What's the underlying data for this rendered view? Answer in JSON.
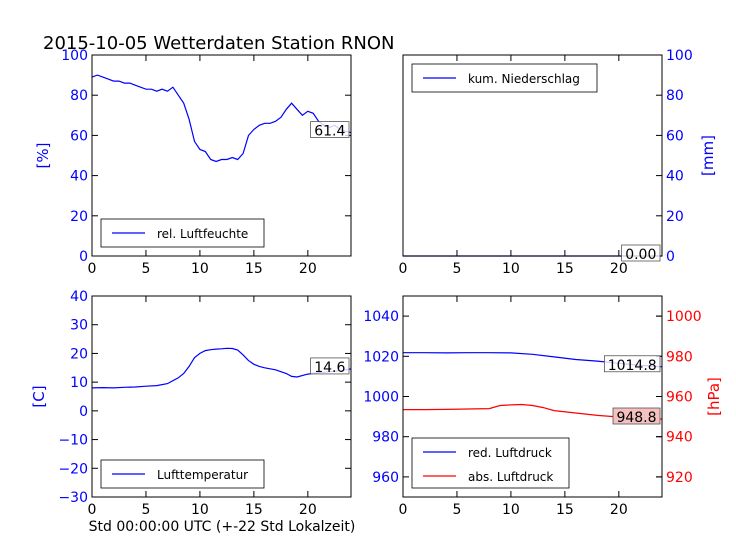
{
  "figure": {
    "title": "2015-10-05 Wetterdaten Station RNON",
    "footer_xlabel": "Std 00:00:00 UTC (+-22 Std Lokalzeit)"
  },
  "colors": {
    "blue": "#0000ff",
    "red": "#ff0000",
    "black": "#000000",
    "pink_box": "#f4c0c0"
  },
  "chart_data": [
    {
      "id": "humidity",
      "type": "line",
      "position": "top-left",
      "title": "",
      "xlabel": "",
      "ylabel": "[%]",
      "xlim": [
        0,
        24
      ],
      "ylim": [
        0,
        100
      ],
      "xticks": [
        "0",
        "5",
        "10",
        "15",
        "20"
      ],
      "yticks": [
        "0",
        "20",
        "40",
        "60",
        "80",
        "100"
      ],
      "ytick_color": "blue",
      "legend_placement": "lower-center",
      "series": [
        {
          "name": "rel. Luftfeuchte",
          "color": "blue",
          "x": [
            0,
            0.5,
            1,
            1.5,
            2,
            2.5,
            3,
            3.5,
            4,
            4.5,
            5,
            5.5,
            6,
            6.5,
            7,
            7.5,
            8,
            8.5,
            9,
            9.5,
            10,
            10.5,
            11,
            11.5,
            12,
            12.5,
            13,
            13.5,
            14,
            14.5,
            15,
            15.5,
            16,
            16.5,
            17,
            17.5,
            18,
            18.5,
            19,
            19.5,
            20,
            20.5,
            21,
            21.5,
            22,
            22.5,
            23,
            23.5,
            24
          ],
          "y": [
            89,
            90,
            89,
            88,
            87,
            87,
            86,
            86,
            85,
            84,
            83,
            83,
            82,
            83,
            82,
            84,
            80,
            76,
            68,
            57,
            53,
            52,
            48,
            47,
            48,
            48,
            49,
            48,
            51,
            60,
            63,
            65,
            66,
            66,
            67,
            69,
            73,
            76,
            73,
            70,
            72,
            71,
            67,
            65,
            64,
            65,
            63,
            62,
            61.4
          ]
        }
      ],
      "annotations": [
        {
          "text": "61.4"
        }
      ]
    },
    {
      "id": "precipitation",
      "type": "line",
      "position": "top-right",
      "title": "",
      "xlabel": "",
      "ylabel": "[mm]",
      "xlim": [
        0,
        24
      ],
      "ylim": [
        0,
        100
      ],
      "xticks": [
        "0",
        "5",
        "10",
        "15",
        "20"
      ],
      "yticks": [
        "0",
        "20",
        "40",
        "60",
        "80",
        "100"
      ],
      "ytick_color": "blue",
      "yaxis_side": "right",
      "legend_placement": "upper-left",
      "series": [
        {
          "name": "kum. Niederschlag",
          "color": "blue",
          "x": [
            0,
            24
          ],
          "y": [
            0,
            0
          ]
        }
      ],
      "annotations": [
        {
          "text": "0.00"
        }
      ]
    },
    {
      "id": "temperature",
      "type": "line",
      "position": "bottom-left",
      "title": "",
      "xlabel": "",
      "ylabel": "[C]",
      "xlim": [
        0,
        24
      ],
      "ylim": [
        -30,
        40
      ],
      "xticks": [
        "0",
        "5",
        "10",
        "15",
        "20"
      ],
      "yticks": [
        "−30",
        "−20",
        "−10",
        "0",
        "10",
        "20",
        "30",
        "40"
      ],
      "ytick_color": "blue",
      "legend_placement": "lower-center",
      "series": [
        {
          "name": "Lufttemperatur",
          "color": "blue",
          "x": [
            0,
            1,
            2,
            3,
            4,
            5,
            6,
            7,
            8,
            8.5,
            9,
            9.5,
            10,
            10.5,
            11,
            11.5,
            12,
            12.5,
            13,
            13.5,
            14,
            14.5,
            15,
            15.5,
            16,
            17,
            18,
            18.5,
            19,
            20,
            21,
            22,
            23,
            24
          ],
          "y": [
            8.0,
            8.1,
            8.0,
            8.2,
            8.3,
            8.6,
            8.8,
            9.5,
            11.5,
            13,
            15.5,
            18.5,
            20,
            21,
            21.3,
            21.5,
            21.6,
            21.8,
            21.7,
            21.2,
            19.5,
            17.5,
            16.2,
            15.5,
            15.0,
            14.3,
            13.0,
            12.0,
            11.8,
            12.8,
            13.3,
            13.6,
            14.0,
            14.6
          ]
        }
      ],
      "annotations": [
        {
          "text": "14.6"
        }
      ]
    },
    {
      "id": "pressure",
      "type": "line",
      "position": "bottom-right",
      "title": "",
      "xlabel": "",
      "ylabel": "[hPa]",
      "ylabel_color": "red",
      "xlim": [
        0,
        24
      ],
      "ylim_left": [
        950,
        1050
      ],
      "ylim_right": [
        910,
        1010
      ],
      "xticks": [
        "0",
        "5",
        "10",
        "15",
        "20"
      ],
      "yticks_left": [
        "960",
        "980",
        "1000",
        "1020",
        "1040"
      ],
      "yticks_right": [
        "920",
        "940",
        "960",
        "980",
        "1000"
      ],
      "ytick_left_color": "blue",
      "ytick_right_color": "red",
      "legend_placement": "lower-left",
      "series": [
        {
          "name": "red. Luftdruck",
          "color": "blue",
          "axis": "left",
          "x": [
            0,
            2,
            4,
            6,
            8,
            10,
            12,
            14,
            16,
            18,
            20,
            22,
            24
          ],
          "y": [
            1021.8,
            1021.8,
            1021.7,
            1021.8,
            1021.8,
            1021.7,
            1021.0,
            1019.7,
            1018.4,
            1017.6,
            1016.5,
            1015.5,
            1014.8
          ]
        },
        {
          "name": "abs. Luftdruck",
          "color": "red",
          "axis": "right",
          "x": [
            0,
            2,
            4,
            6,
            8,
            9,
            10,
            11,
            12,
            13,
            14,
            16,
            18,
            20,
            22,
            24
          ],
          "y": [
            953.5,
            953.5,
            953.6,
            953.8,
            954.0,
            955.5,
            955.8,
            956.0,
            955.5,
            954.5,
            953.0,
            951.8,
            950.6,
            949.8,
            949.2,
            948.8
          ]
        }
      ],
      "annotations": [
        {
          "text": "1014.8"
        },
        {
          "text": "948.8",
          "boxed": true
        }
      ]
    }
  ]
}
